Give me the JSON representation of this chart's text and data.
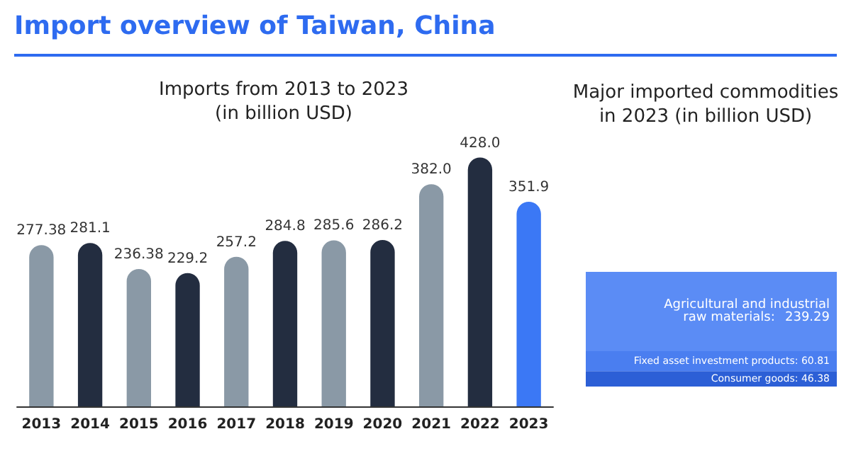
{
  "chart_data": [
    {
      "type": "bar",
      "title": "Import overview of Taiwan, China",
      "subtitle": "Imports from 2013 to 2023\n(in billion USD)",
      "categories": [
        "2013",
        "2014",
        "2015",
        "2016",
        "2017",
        "2018",
        "2019",
        "2020",
        "2021",
        "2022",
        "2023"
      ],
      "values": [
        277.38,
        281.1,
        236.38,
        229.2,
        257.2,
        284.8,
        285.6,
        286.2,
        382.0,
        428.0,
        351.9
      ],
      "value_labels": [
        "277.38",
        "281.1",
        "236.38",
        "229.2",
        "257.2",
        "284.8",
        "285.6",
        "286.2",
        "382.0",
        "428.0",
        "351.9"
      ],
      "colors": [
        "#8a99a6",
        "#232d40",
        "#8a99a6",
        "#232d40",
        "#8a99a6",
        "#232d40",
        "#8a99a6",
        "#232d40",
        "#8a99a6",
        "#232d40",
        "#3b78f5"
      ],
      "legend": false
    },
    {
      "type": "bar",
      "title": "Major imported commodities\nin 2023 (in billion USD)",
      "categories": [
        null
      ],
      "stacked": true,
      "legend": false,
      "series": [
        {
          "name": "Consumer goods:",
          "color": "#2c5fd6",
          "values": [
            46.38
          ],
          "value_labels": [
            "46.38"
          ]
        },
        {
          "name": "Fixed asset investment products:",
          "color": "#4a7ef0",
          "values": [
            60.81
          ],
          "value_labels": [
            "60.81"
          ]
        },
        {
          "name": "Agricultural and industrial raw materials:",
          "color": "#5b8cf5",
          "values": [
            239.29
          ],
          "value_labels": [
            "239.29"
          ]
        }
      ]
    }
  ]
}
